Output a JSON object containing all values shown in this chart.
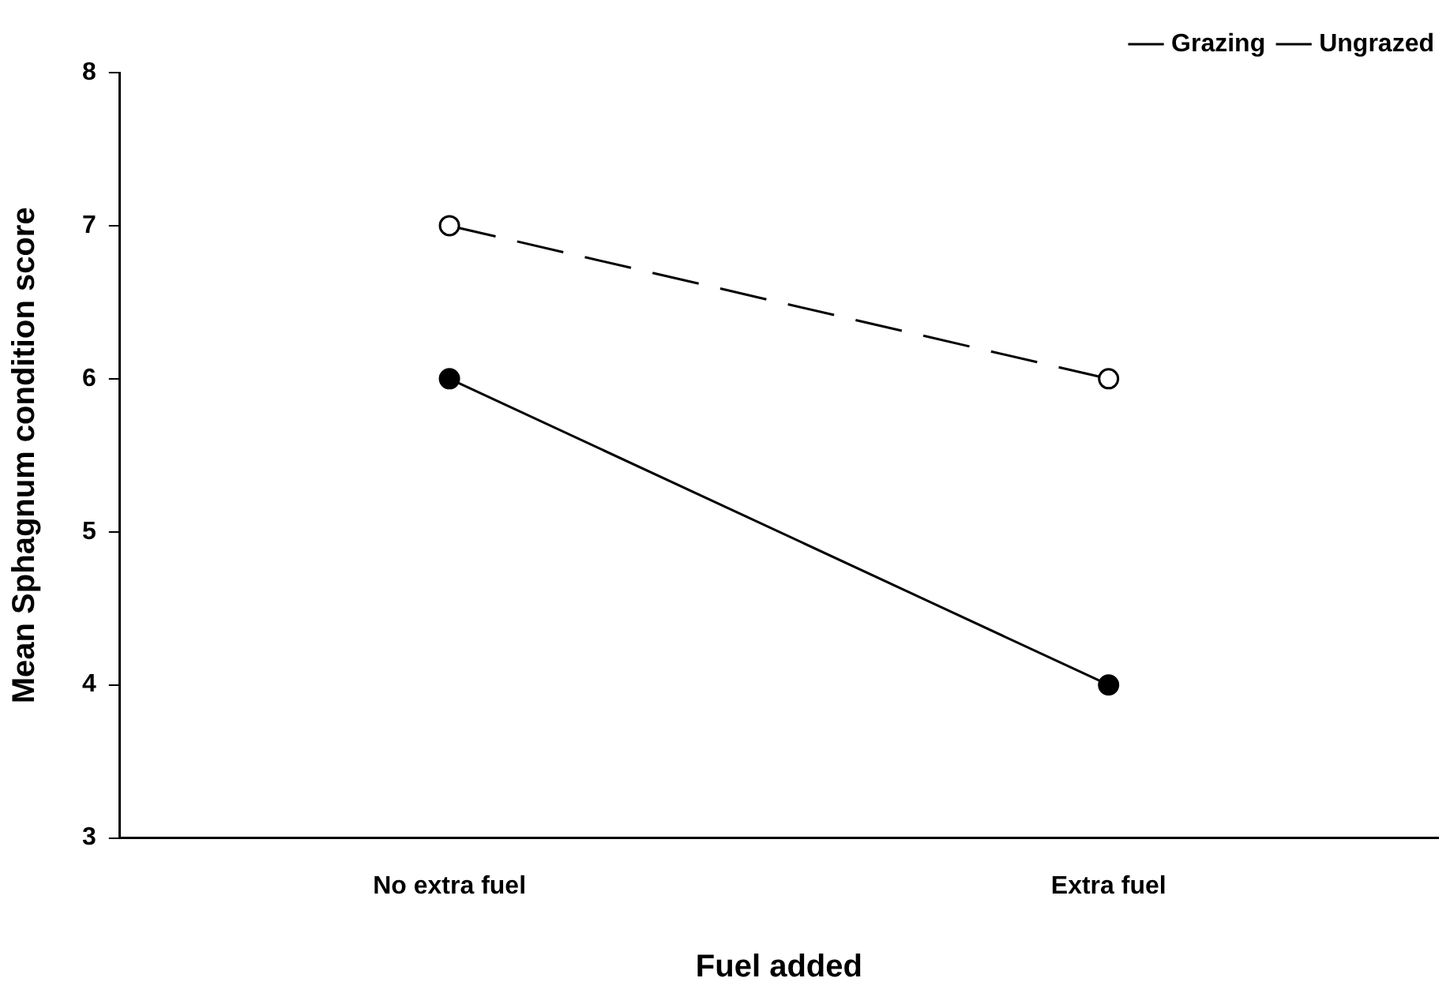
{
  "chart_data": {
    "type": "line",
    "xlabel": "Fuel added",
    "ylabel": "Mean Sphagnum condition score",
    "categories": [
      "No extra fuel",
      "Extra fuel"
    ],
    "series": [
      {
        "name": "Grazing",
        "color": "#000000",
        "values": [
          6,
          4
        ],
        "line_style": "solid"
      },
      {
        "name": "Ungrazed",
        "color": "#000000",
        "values": [
          7,
          6
        ],
        "line_style": "dashed"
      }
    ],
    "ylim": [
      3,
      8
    ],
    "yticks": [
      3,
      4,
      5,
      6,
      7,
      8
    ],
    "grid": false,
    "legend": "top right",
    "marker": "circle"
  }
}
